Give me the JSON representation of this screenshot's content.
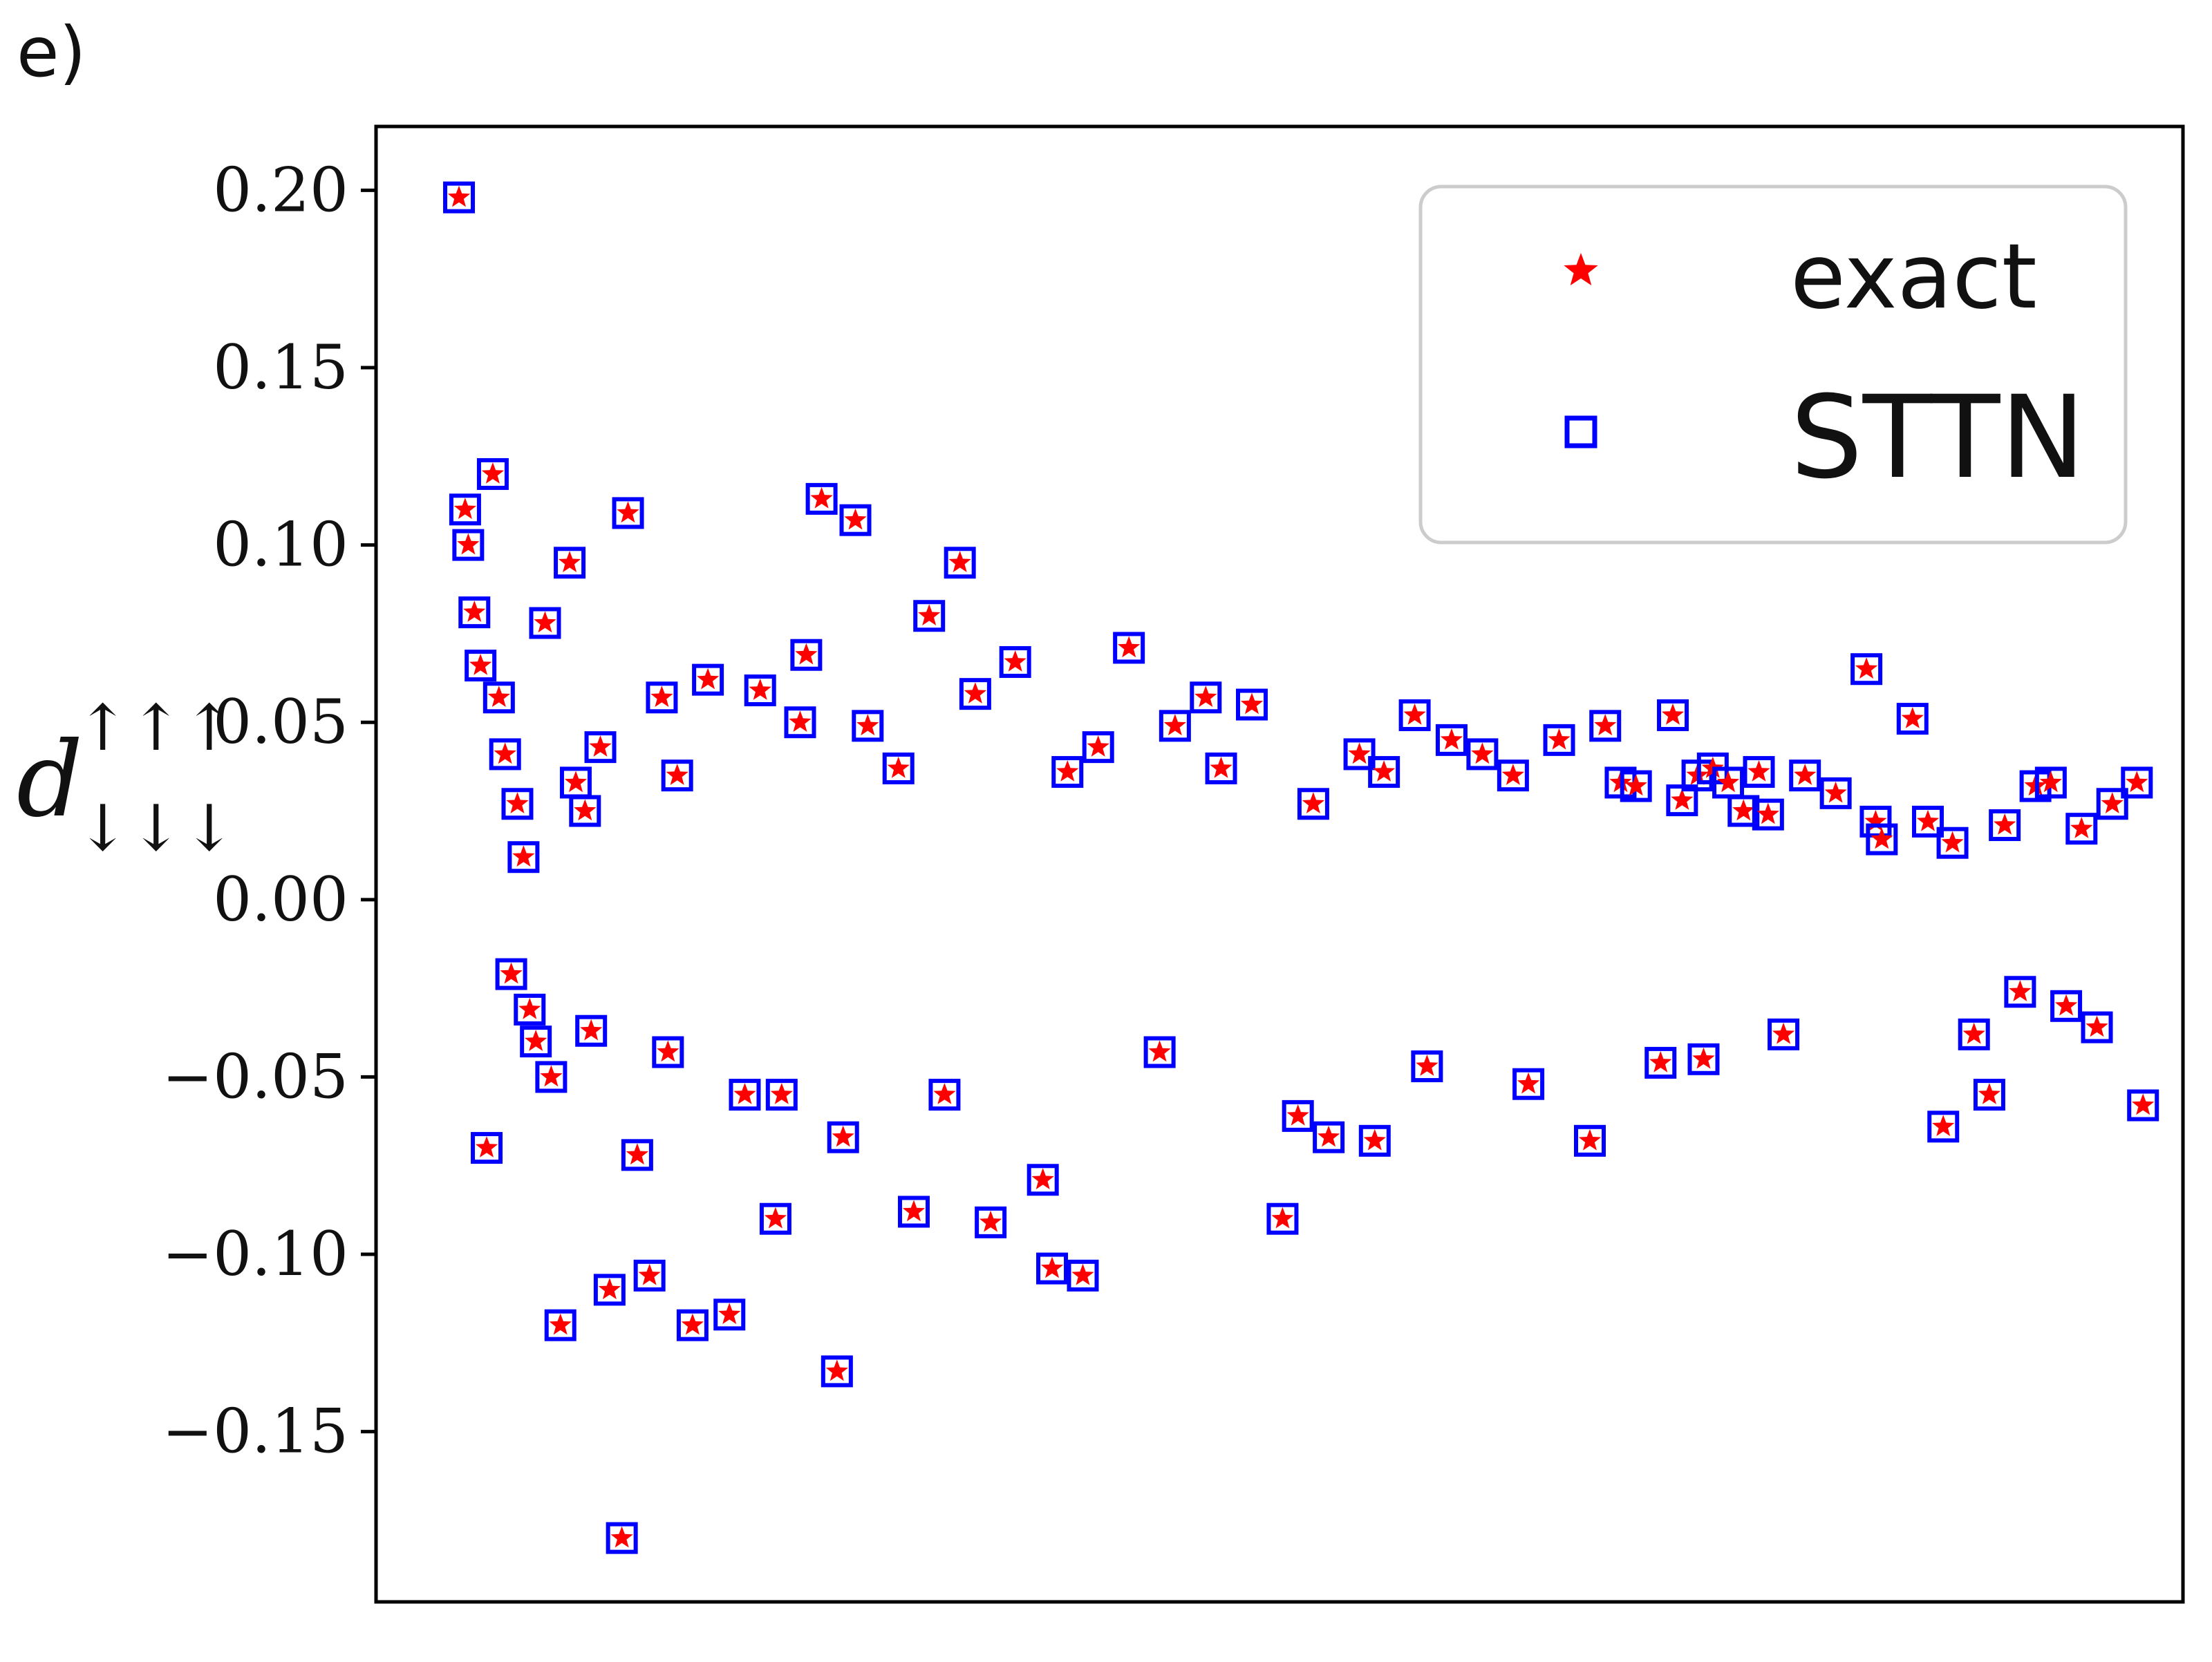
{
  "panel_label": "e)",
  "chart_data": {
    "type": "scatter",
    "ylabel": {
      "base": "d",
      "superscript": "↑↑↑",
      "subscript": "↓↓↓"
    },
    "yticks": [
      {
        "value": 0.2,
        "label": "0.20"
      },
      {
        "value": 0.15,
        "label": "0.15"
      },
      {
        "value": 0.1,
        "label": "0.10"
      },
      {
        "value": 0.05,
        "label": "0.05"
      },
      {
        "value": 0.0,
        "label": "0.00"
      },
      {
        "value": -0.05,
        "label": "−0.05"
      },
      {
        "value": -0.1,
        "label": "−0.10"
      },
      {
        "value": -0.15,
        "label": "−0.15"
      }
    ],
    "ylim": [
      -0.198,
      0.218
    ],
    "xlim": [
      -20,
      568
    ],
    "xticks_shown": false,
    "grid": false,
    "legend_position": "top-right",
    "series": [
      {
        "name": "exact",
        "marker": "star",
        "color": "#ff0000"
      },
      {
        "name": "STTN",
        "marker": "open-square",
        "color": "#0000ff"
      }
    ],
    "x": [
      7,
      9,
      10,
      12,
      14,
      16,
      18,
      20,
      22,
      24,
      26,
      28,
      30,
      32,
      35,
      37,
      40,
      43,
      45,
      48,
      50,
      53,
      56,
      60,
      62,
      65,
      69,
      73,
      75,
      78,
      83,
      88,
      95,
      100,
      105,
      110,
      112,
      118,
      120,
      125,
      130,
      132,
      136,
      140,
      150,
      155,
      160,
      165,
      170,
      175,
      180,
      188,
      197,
      200,
      205,
      210,
      215,
      225,
      235,
      240,
      250,
      255,
      265,
      275,
      280,
      285,
      290,
      300,
      305,
      308,
      318,
      322,
      330,
      340,
      350,
      355,
      365,
      375,
      380,
      385,
      390,
      398,
      402,
      405,
      410,
      412,
      415,
      420,
      425,
      430,
      433,
      438,
      445,
      455,
      465,
      468,
      470,
      480,
      485,
      490,
      493,
      500,
      505,
      510,
      515,
      520,
      525,
      530,
      535,
      540,
      545,
      553,
      555
    ],
    "y": [
      0.198,
      0.11,
      0.1,
      0.081,
      0.066,
      -0.07,
      0.12,
      0.057,
      0.041,
      -0.021,
      0.027,
      0.012,
      -0.031,
      -0.04,
      0.078,
      -0.05,
      -0.12,
      0.095,
      0.033,
      0.025,
      -0.037,
      0.043,
      -0.11,
      -0.18,
      0.109,
      -0.072,
      -0.106,
      0.057,
      -0.043,
      0.035,
      -0.12,
      0.062,
      -0.117,
      -0.055,
      0.059,
      -0.09,
      -0.055,
      0.05,
      0.069,
      0.113,
      -0.133,
      -0.067,
      0.107,
      0.049,
      0.037,
      -0.088,
      0.08,
      -0.055,
      0.095,
      0.058,
      -0.091,
      0.067,
      -0.079,
      -0.104,
      0.036,
      -0.106,
      0.043,
      0.071,
      -0.043,
      0.049,
      0.057,
      0.037,
      0.055,
      -0.09,
      -0.061,
      0.027,
      -0.067,
      0.041,
      -0.068,
      0.036,
      0.052,
      -0.047,
      0.045,
      0.041,
      0.035,
      -0.052,
      0.045,
      -0.068,
      0.049,
      0.033,
      0.032,
      -0.046,
      0.052,
      0.028,
      0.035,
      -0.045,
      0.037,
      0.033,
      0.025,
      0.036,
      0.024,
      -0.038,
      0.035,
      0.03,
      0.065,
      0.022,
      0.017,
      0.051,
      0.022,
      -0.064,
      0.016,
      -0.038,
      -0.055,
      0.021,
      -0.026,
      0.032,
      0.033,
      -0.03,
      0.02,
      -0.036,
      0.027,
      0.033,
      -0.058
    ]
  }
}
